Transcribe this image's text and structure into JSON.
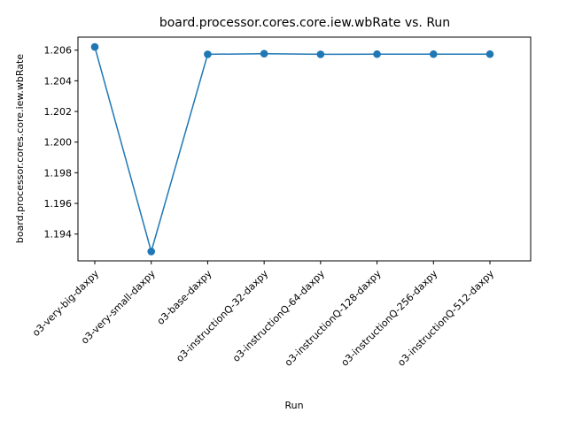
{
  "chart_data": {
    "type": "line",
    "title": "board.processor.cores.core.iew.wbRate vs. Run",
    "xlabel": "Run",
    "ylabel": "board.processor.cores.core.iew.wbRate",
    "categories": [
      "o3-very-big-daxpy",
      "o3-very-small-daxpy",
      "o3-base-daxpy",
      "o3-instructionQ-32-daxpy",
      "o3-instructionQ-64-daxpy",
      "o3-instructionQ-128-daxpy",
      "o3-instructionQ-256-daxpy",
      "o3-instructionQ-512-daxpy"
    ],
    "series": [
      {
        "values": [
          1.20621,
          1.19286,
          1.20573,
          1.20577,
          1.20573,
          1.20574,
          1.20574,
          1.20574
        ],
        "color": "#1f77b4"
      }
    ],
    "ylim": [
      1.19225,
      1.20685
    ],
    "yticks": [
      1.194,
      1.196,
      1.198,
      1.2,
      1.202,
      1.204,
      1.206
    ],
    "ytick_labels": [
      "1.194",
      "1.196",
      "1.198",
      "1.200",
      "1.202",
      "1.204",
      "1.206"
    ],
    "grid": false,
    "marker": "circle"
  }
}
